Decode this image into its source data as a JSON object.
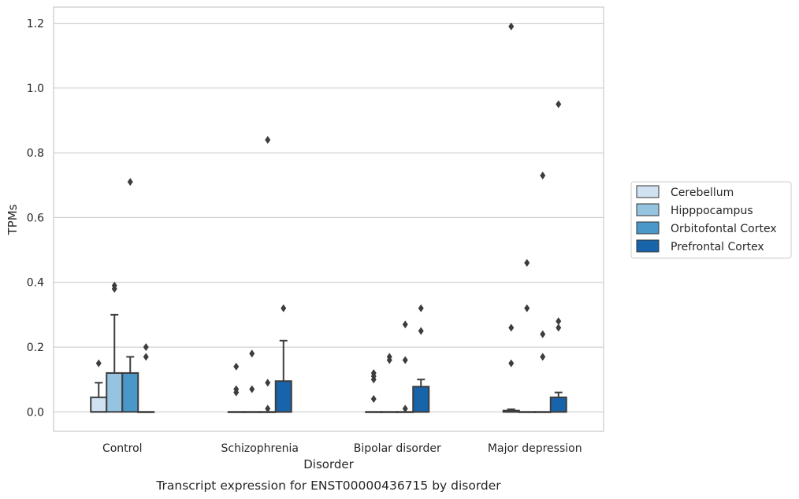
{
  "chart_data": {
    "type": "box",
    "xlabel": "Disorder",
    "ylabel": "TPMs",
    "caption": "Transcript expression for ENST00000436715 by disorder",
    "ylim": [
      -0.06,
      1.25
    ],
    "yticks": [
      0.0,
      0.2,
      0.4,
      0.6,
      0.8,
      1.0,
      1.2
    ],
    "ytick_labels": [
      "0.0",
      "0.2",
      "0.4",
      "0.6",
      "0.8",
      "1.0",
      "1.2"
    ],
    "grid": true,
    "legend_position": "right",
    "categories": [
      "Control",
      "Schizophrenia",
      "Bipolar disorder",
      "Major depression"
    ],
    "series": [
      {
        "name": "Cerebellum",
        "color": "#d0e1f2",
        "boxes": [
          {
            "q1": 0.0,
            "median": 0.0,
            "q3": 0.045,
            "whisker_low": 0.0,
            "whisker_high": 0.09,
            "outliers": [
              0.15
            ]
          },
          {
            "q1": 0.0,
            "median": 0.0,
            "q3": 0.0,
            "whisker_low": 0.0,
            "whisker_high": 0.0,
            "outliers": [
              0.14,
              0.07,
              0.06
            ]
          },
          {
            "q1": 0.0,
            "median": 0.0,
            "q3": 0.0,
            "whisker_low": 0.0,
            "whisker_high": 0.0,
            "outliers": [
              0.12,
              0.11,
              0.1,
              0.04
            ]
          },
          {
            "q1": 0.0,
            "median": 0.0,
            "q3": 0.004,
            "whisker_low": 0.0,
            "whisker_high": 0.008,
            "outliers": [
              1.19,
              0.26,
              0.15
            ]
          }
        ]
      },
      {
        "name": "Hipppocampus",
        "color": "#94c4df",
        "boxes": [
          {
            "q1": 0.0,
            "median": 0.12,
            "q3": 0.12,
            "whisker_low": 0.0,
            "whisker_high": 0.3,
            "outliers": [
              0.39,
              0.38
            ]
          },
          {
            "q1": 0.0,
            "median": 0.0,
            "q3": 0.0,
            "whisker_low": 0.0,
            "whisker_high": 0.0,
            "outliers": [
              0.18,
              0.07
            ]
          },
          {
            "q1": 0.0,
            "median": 0.0,
            "q3": 0.0,
            "whisker_low": 0.0,
            "whisker_high": 0.0,
            "outliers": [
              0.17,
              0.16
            ]
          },
          {
            "q1": 0.0,
            "median": 0.0,
            "q3": 0.0,
            "whisker_low": 0.0,
            "whisker_high": 0.0,
            "outliers": [
              0.46,
              0.32
            ]
          }
        ]
      },
      {
        "name": "Orbitofontal Cortex",
        "color": "#4a98c9",
        "boxes": [
          {
            "q1": 0.0,
            "median": 0.12,
            "q3": 0.12,
            "whisker_low": 0.0,
            "whisker_high": 0.17,
            "outliers": [
              0.71
            ]
          },
          {
            "q1": 0.0,
            "median": 0.0,
            "q3": 0.0,
            "whisker_low": 0.0,
            "whisker_high": 0.0,
            "outliers": [
              0.84,
              0.09,
              0.01
            ]
          },
          {
            "q1": 0.0,
            "median": 0.0,
            "q3": 0.0,
            "whisker_low": 0.0,
            "whisker_high": 0.0,
            "outliers": [
              0.27,
              0.16,
              0.01
            ]
          },
          {
            "q1": 0.0,
            "median": 0.0,
            "q3": 0.0,
            "whisker_low": 0.0,
            "whisker_high": 0.0,
            "outliers": [
              0.73,
              0.24,
              0.17
            ]
          }
        ]
      },
      {
        "name": "Prefrontal Cortex",
        "color": "#1764ab",
        "boxes": [
          {
            "q1": 0.0,
            "median": 0.0,
            "q3": 0.0,
            "whisker_low": 0.0,
            "whisker_high": 0.0,
            "outliers": [
              0.2,
              0.17
            ]
          },
          {
            "q1": 0.0,
            "median": 0.0,
            "q3": 0.095,
            "whisker_low": 0.0,
            "whisker_high": 0.22,
            "outliers": [
              0.32
            ]
          },
          {
            "q1": 0.0,
            "median": 0.0,
            "q3": 0.078,
            "whisker_low": 0.0,
            "whisker_high": 0.1,
            "outliers": [
              0.32,
              0.25
            ]
          },
          {
            "q1": 0.0,
            "median": 0.0,
            "q3": 0.045,
            "whisker_low": 0.0,
            "whisker_high": 0.06,
            "outliers": [
              0.95,
              0.28,
              0.26
            ]
          }
        ]
      }
    ]
  }
}
